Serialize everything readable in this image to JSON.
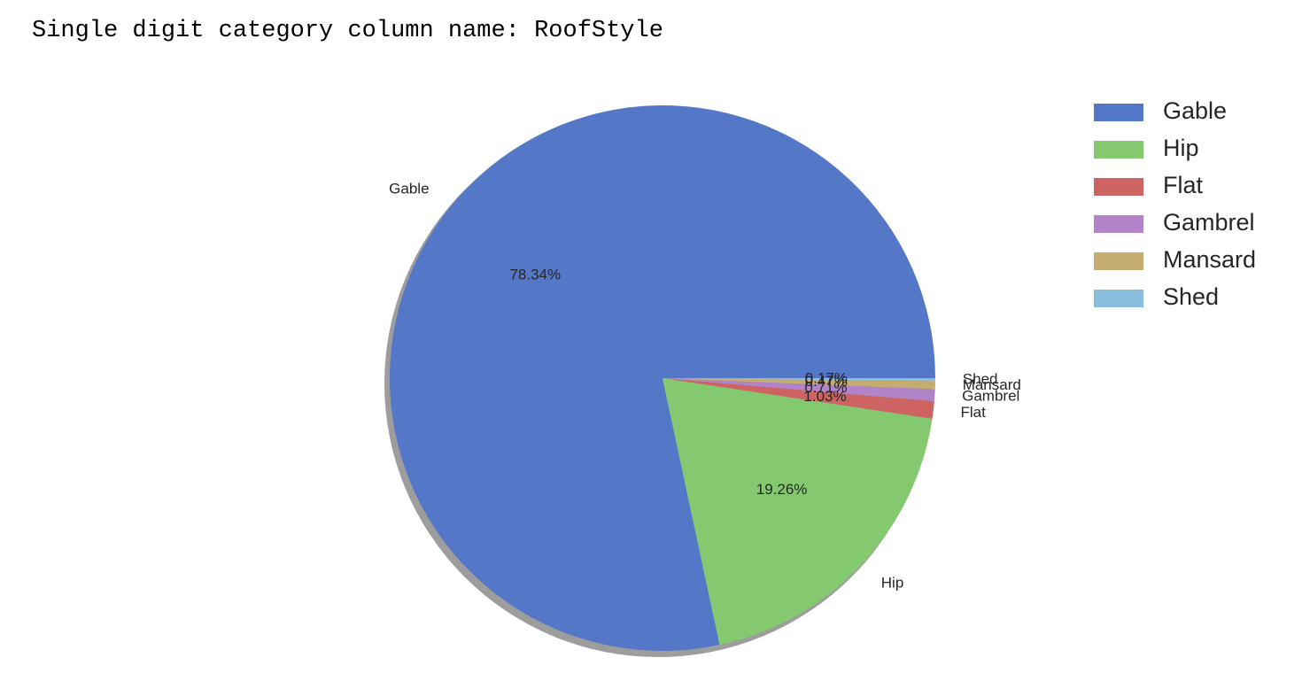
{
  "header": {
    "text": "Single digit category column name: RoofStyle"
  },
  "chart_data": {
    "type": "pie",
    "title": "",
    "categories": [
      "Gable",
      "Hip",
      "Flat",
      "Gambrel",
      "Mansard",
      "Shed"
    ],
    "values": [
      78.34,
      19.26,
      1.03,
      0.71,
      0.47,
      0.17
    ],
    "value_labels": [
      "78.34%",
      "19.26%",
      "1.03%",
      "0.71%",
      "0.47%",
      "0.17%"
    ],
    "colors": [
      "#5477c8",
      "#84c970",
      "#cd6461",
      "#b283c8",
      "#c4ad6e",
      "#88bddc"
    ],
    "shadow": true,
    "legend": {
      "placement": "upper-right",
      "entries": [
        "Gable",
        "Hip",
        "Flat",
        "Gambrel",
        "Mansard",
        "Shed"
      ]
    }
  }
}
